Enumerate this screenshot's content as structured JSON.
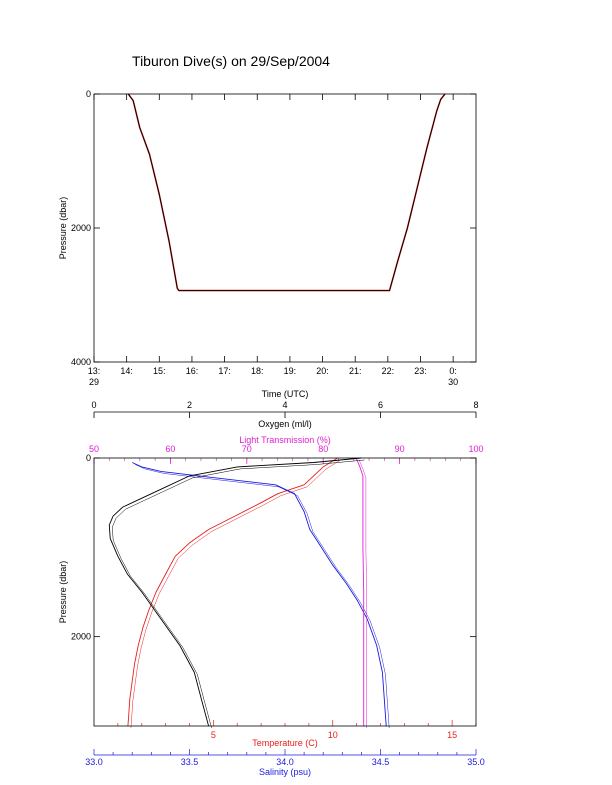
{
  "page_title": "Tiburon Dive(s) on 29/Sep/2004",
  "colors": {
    "axis": "#000000",
    "dive_trace": "#000000",
    "dive_trace_secondary": "#e0302c",
    "temperature": "#e8201c",
    "salinity": "#1a1ae0",
    "light_transmission": "#e020d0",
    "oxygen": "#000000"
  },
  "chart_data": [
    {
      "type": "line",
      "title": "Tiburon Dive(s) on 29/Sep/2004",
      "xlabel": "Time (UTC)",
      "ylabel": "Pressure (dbar)",
      "x_unit": "hours UTC from 13:00 on 29 Sep",
      "xlim": [
        13.0,
        24.7
      ],
      "ylim": [
        4000,
        0
      ],
      "x_ticks": [
        {
          "value": 13,
          "label": "13:",
          "sublabel": "29"
        },
        {
          "value": 14,
          "label": "14:",
          "sublabel": ""
        },
        {
          "value": 15,
          "label": "15:",
          "sublabel": ""
        },
        {
          "value": 16,
          "label": "16:",
          "sublabel": ""
        },
        {
          "value": 17,
          "label": "17:",
          "sublabel": ""
        },
        {
          "value": 18,
          "label": "18:",
          "sublabel": ""
        },
        {
          "value": 19,
          "label": "19:",
          "sublabel": ""
        },
        {
          "value": 20,
          "label": "20:",
          "sublabel": ""
        },
        {
          "value": 21,
          "label": "21:",
          "sublabel": ""
        },
        {
          "value": 22,
          "label": "22:",
          "sublabel": ""
        },
        {
          "value": 23,
          "label": "23:",
          "sublabel": ""
        },
        {
          "value": 24,
          "label": "0:",
          "sublabel": "30"
        }
      ],
      "y_ticks": [
        {
          "value": 0,
          "label": "0"
        },
        {
          "value": 2000,
          "label": "2000"
        },
        {
          "value": 4000,
          "label": "4000"
        }
      ],
      "series": [
        {
          "x": [
            14.05,
            14.2,
            14.4,
            14.7,
            15.0,
            15.3,
            15.55,
            15.6,
            16.5,
            17.5,
            18.5,
            19.5,
            20.5,
            21.5,
            22.05,
            22.3,
            22.6,
            22.9,
            23.2,
            23.5,
            23.62,
            23.75
          ],
          "y": [
            0,
            100,
            500,
            900,
            1500,
            2200,
            2900,
            2935,
            2935,
            2935,
            2935,
            2935,
            2935,
            2935,
            2935,
            2500,
            2000,
            1400,
            800,
            250,
            80,
            0
          ]
        }
      ]
    },
    {
      "type": "line",
      "ylabel": "Pressure (dbar)",
      "ylim": [
        3000,
        0
      ],
      "y_ticks": [
        {
          "value": 0,
          "label": "0"
        },
        {
          "value": 2000,
          "label": "2000"
        }
      ],
      "axes": {
        "oxygen": {
          "label": "Oxygen (ml/l)",
          "position": "top",
          "range": [
            0,
            8
          ],
          "ticks": [
            0,
            2,
            4,
            6,
            8
          ]
        },
        "light_transmission": {
          "label": "Light Transmission (%)",
          "position": "top",
          "range": [
            50,
            100
          ],
          "ticks": [
            50,
            60,
            70,
            80,
            90,
            100
          ]
        },
        "temperature": {
          "label": "Temperature (C)",
          "position": "bottom",
          "range": [
            0,
            16
          ],
          "ticks": [
            5,
            10,
            15
          ]
        },
        "salinity": {
          "label": "Salinity (psu)",
          "position": "bottom",
          "range": [
            33.0,
            35.0
          ],
          "ticks": [
            "33.0",
            "33.5",
            "34.0",
            "34.5",
            "35.0"
          ]
        }
      },
      "series": [
        {
          "axis": "temperature",
          "x": [
            10.2,
            9.6,
            8.8,
            7.7,
            7.0,
            5.9,
            4.8,
            4.0,
            3.4,
            3.0,
            2.6,
            2.3,
            2.05,
            1.85,
            1.7,
            1.6,
            1.5,
            1.45,
            1.42
          ],
          "y": [
            0,
            100,
            300,
            400,
            500,
            650,
            800,
            950,
            1100,
            1300,
            1500,
            1700,
            1900,
            2100,
            2300,
            2500,
            2700,
            2900,
            3000
          ]
        },
        {
          "axis": "salinity",
          "x": [
            33.2,
            33.25,
            33.35,
            33.55,
            33.95,
            34.05,
            34.1,
            34.13,
            34.19,
            34.25,
            34.32,
            34.38,
            34.43,
            34.48,
            34.51,
            34.52,
            34.53
          ],
          "y": [
            50,
            100,
            150,
            200,
            300,
            400,
            600,
            800,
            1000,
            1200,
            1400,
            1600,
            1800,
            2100,
            2400,
            2700,
            3000
          ]
        },
        {
          "axis": "light_transmission",
          "x": [
            84.3,
            84.8,
            85.2,
            85.2,
            85.2,
            85.3,
            85.3,
            85.3,
            85.3
          ],
          "y": [
            0,
            100,
            200,
            400,
            1000,
            1500,
            2000,
            2500,
            3000
          ]
        },
        {
          "axis": "oxygen",
          "x": [
            5.6,
            4.6,
            3.0,
            2.0,
            1.4,
            1.0,
            0.6,
            0.4,
            0.32,
            0.34,
            0.5,
            0.7,
            1.0,
            1.4,
            1.8,
            2.1,
            2.25,
            2.4
          ],
          "y": [
            0,
            50,
            100,
            200,
            350,
            450,
            550,
            650,
            750,
            900,
            1100,
            1300,
            1500,
            1800,
            2100,
            2400,
            2700,
            3000
          ]
        }
      ]
    }
  ]
}
